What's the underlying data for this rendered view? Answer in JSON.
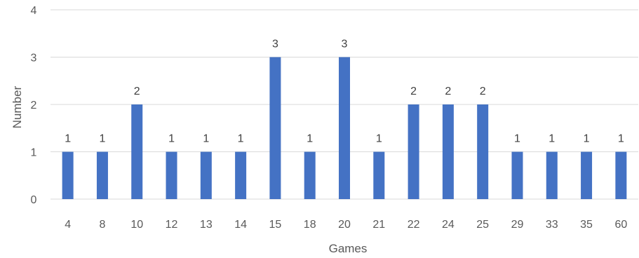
{
  "chart_data": {
    "type": "bar",
    "title": "",
    "xlabel": "Games",
    "ylabel": "Number",
    "categories": [
      "4",
      "8",
      "10",
      "12",
      "13",
      "14",
      "15",
      "18",
      "20",
      "21",
      "22",
      "24",
      "25",
      "29",
      "33",
      "35",
      "60"
    ],
    "values": [
      1,
      1,
      2,
      1,
      1,
      1,
      3,
      1,
      3,
      1,
      2,
      2,
      2,
      1,
      1,
      1,
      1
    ],
    "yticks": [
      0,
      1,
      2,
      3,
      4
    ],
    "ylim": [
      0,
      4
    ],
    "grid": true,
    "bar_color": "#4472c4"
  }
}
